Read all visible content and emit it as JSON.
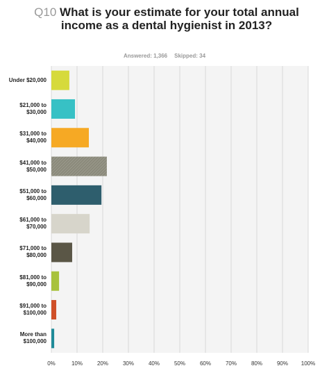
{
  "chart_data": {
    "type": "bar",
    "orientation": "horizontal",
    "question_number": "Q10",
    "title": "What is your estimate for your total annual income as a dental hygienist in 2013?",
    "answered": "Answered: 1,366",
    "skipped": "Skipped: 34",
    "categories": [
      "Under $20,000",
      "$21,000 to $30,000",
      "$31,000 to $40,000",
      "$41,000 to $50,000",
      "$51,000 to $60,000",
      "$61,000 to $70,000",
      "$71,000 to $80,000",
      "$81,000 to $90,000",
      "$91,000 to $100,000",
      "More than $100,000"
    ],
    "values": [
      7,
      9.2,
      14.6,
      21.6,
      19.5,
      14.9,
      8.1,
      3,
      1.9,
      1.1
    ],
    "colors": [
      "#d6da3c",
      "#37c1c5",
      "#f6a924",
      "#8b8a7b",
      "#2e5e6d",
      "#d7d5cb",
      "#5a5646",
      "#a8c23c",
      "#cf4f28",
      "#1f8b99"
    ],
    "xlim": [
      0,
      100
    ],
    "xticks": [
      {
        "value": 0,
        "label": "0%"
      },
      {
        "value": 10,
        "label": "10%"
      },
      {
        "value": 20,
        "label": "20%"
      },
      {
        "value": 30,
        "label": "30%"
      },
      {
        "value": 40,
        "label": "40%"
      },
      {
        "value": 50,
        "label": "50%"
      },
      {
        "value": 60,
        "label": "60%"
      },
      {
        "value": 70,
        "label": "70%"
      },
      {
        "value": 80,
        "label": "80%"
      },
      {
        "value": 90,
        "label": "90%"
      },
      {
        "value": 100,
        "label": "100%"
      }
    ],
    "grid": true
  }
}
